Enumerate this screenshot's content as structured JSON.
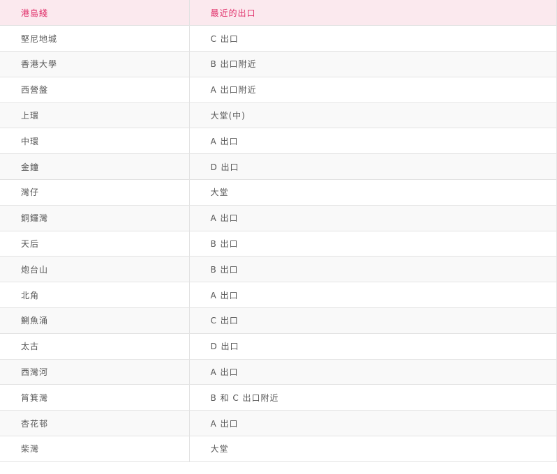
{
  "table": {
    "headers": [
      "港島綫",
      "最近的出口"
    ],
    "rows": [
      [
        "堅尼地城",
        "C 出口"
      ],
      [
        "香港大學",
        "B 出口附近"
      ],
      [
        "西營盤",
        "A 出口附近"
      ],
      [
        "上環",
        "大堂(中)"
      ],
      [
        "中環",
        "A 出口"
      ],
      [
        "金鐘",
        "D 出口"
      ],
      [
        "灣仔",
        "大堂"
      ],
      [
        "銅鑼灣",
        "A 出口"
      ],
      [
        "天后",
        "B 出口"
      ],
      [
        "炮台山",
        "B 出口"
      ],
      [
        "北角",
        "A 出口"
      ],
      [
        "鰂魚涌",
        "C 出口"
      ],
      [
        "太古",
        "D 出口"
      ],
      [
        "西灣河",
        "A 出口"
      ],
      [
        "筲箕灣",
        "B 和 C 出口附近"
      ],
      [
        "杏花邨",
        "A 出口"
      ],
      [
        "柴灣",
        "大堂"
      ]
    ]
  },
  "colors": {
    "header_bg": "#fbe9ee",
    "header_text": "#e0306a",
    "alt_row_bg": "#f9f9f9"
  }
}
